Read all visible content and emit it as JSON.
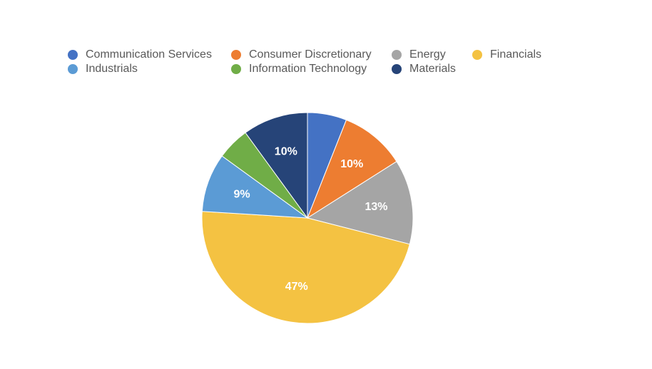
{
  "chart_data": {
    "type": "pie",
    "title": "",
    "legend_position": "top",
    "categories": [
      "Communication Services",
      "Consumer Discretionary",
      "Energy",
      "Financials",
      "Industrials",
      "Information Technology",
      "Materials"
    ],
    "values": [
      6,
      10,
      13,
      47,
      9,
      5,
      10
    ],
    "data_labels": [
      "",
      "10%",
      "13%",
      "47%",
      "9%",
      "",
      "10%"
    ],
    "colors": [
      "#4472C4",
      "#ED7D31",
      "#A5A5A5",
      "#F4C242",
      "#5B9BD5",
      "#70AD47",
      "#264478"
    ]
  }
}
